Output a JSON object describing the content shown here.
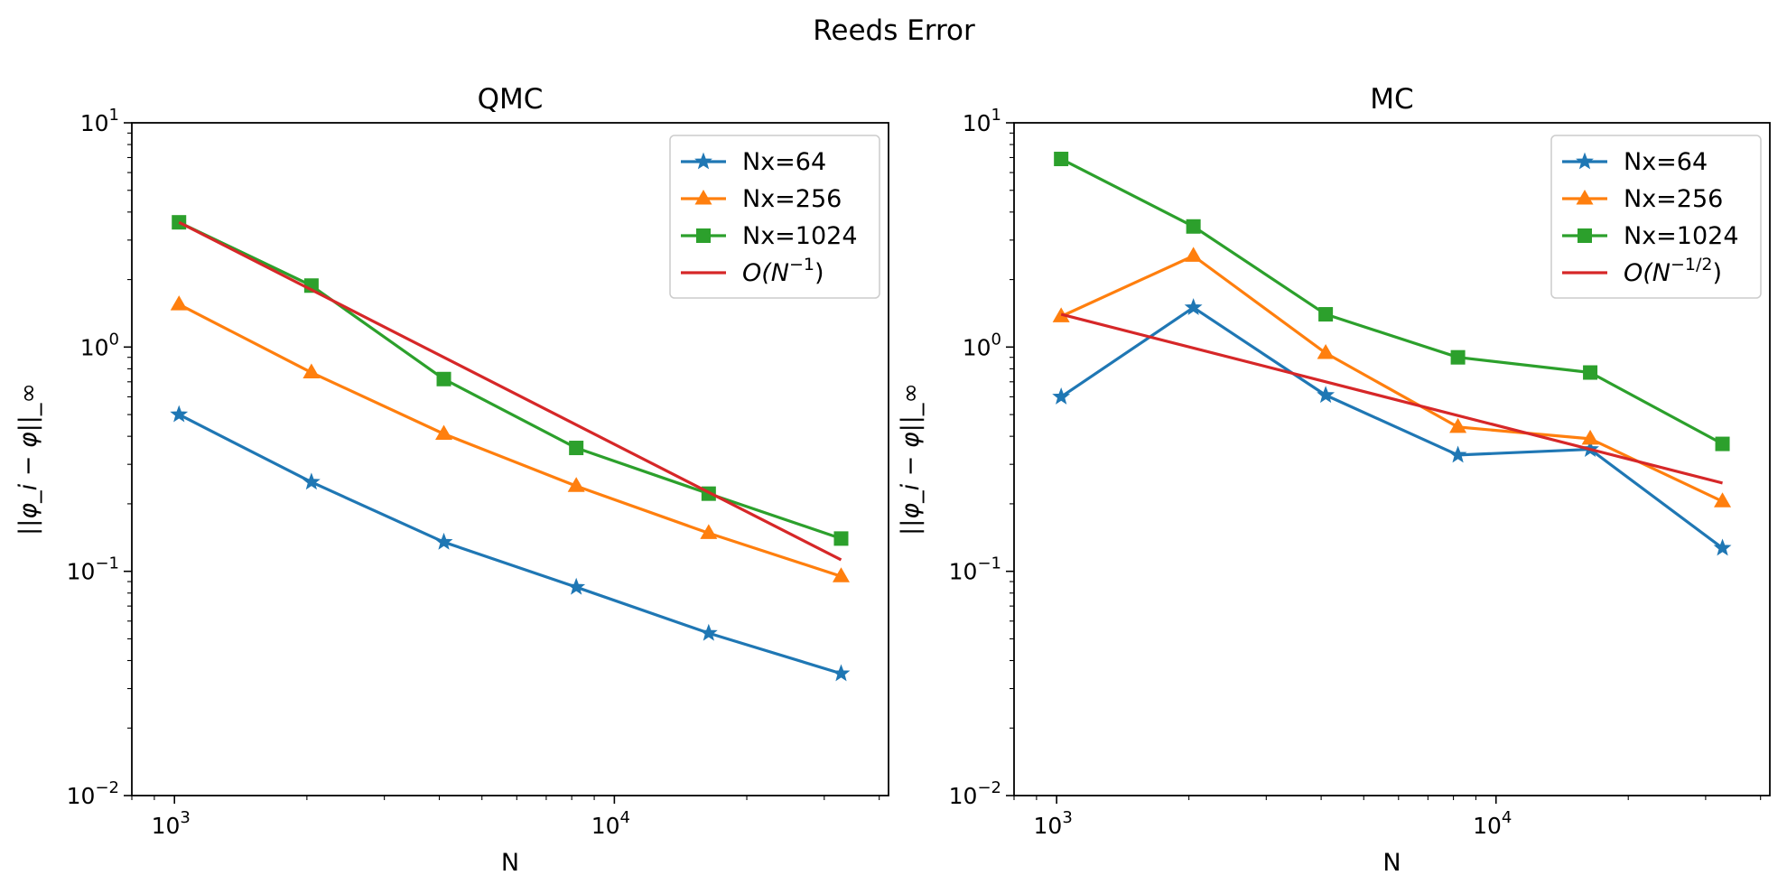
{
  "figure_title": "Reeds Error",
  "colors": {
    "Nx=64": "#1f77b4",
    "Nx=256": "#ff7f0e",
    "Nx=1024": "#2ca02c",
    "reference": "#d62728"
  },
  "chart_data": [
    {
      "type": "line",
      "title": "QMC",
      "xlabel": "N",
      "ylabel": "||φ_i − φ||_∞",
      "xscale": "log",
      "yscale": "log",
      "xlim": [
        800,
        42000
      ],
      "ylim": [
        0.01,
        10
      ],
      "x_ticks": [
        {
          "base": "10",
          "exp": "3"
        },
        {
          "base": "10",
          "exp": "4"
        }
      ],
      "y_ticks": [
        {
          "base": "10",
          "exp": "1"
        },
        {
          "base": "10",
          "exp": "0"
        },
        {
          "base": "10",
          "exp": "−1"
        },
        {
          "base": "10",
          "exp": "−2"
        }
      ],
      "legend_position": "upper right",
      "grid": false,
      "x": [
        1024,
        2048,
        4096,
        8192,
        16384,
        32768
      ],
      "series": [
        {
          "name": "Nx=64",
          "marker": "star",
          "values": [
            0.5,
            0.25,
            0.135,
            0.085,
            0.053,
            0.035
          ]
        },
        {
          "name": "Nx=256",
          "marker": "triangle",
          "values": [
            1.55,
            0.77,
            0.41,
            0.24,
            0.148,
            0.095
          ]
        },
        {
          "name": "Nx=1024",
          "marker": "square",
          "values": [
            3.6,
            1.88,
            0.72,
            0.355,
            0.222,
            0.14
          ]
        },
        {
          "name": "O(N^{-1})",
          "legend_main": "O(N",
          "legend_sup": "−1",
          "legend_tail": ")",
          "marker": "none",
          "x": [
            1024,
            32768
          ],
          "values": [
            3.6,
            0.1125
          ]
        }
      ]
    },
    {
      "type": "line",
      "title": "MC",
      "xlabel": "N",
      "ylabel": "||φ_i − φ||_∞",
      "xscale": "log",
      "yscale": "log",
      "xlim": [
        800,
        42000
      ],
      "ylim": [
        0.01,
        10
      ],
      "x_ticks": [
        {
          "base": "10",
          "exp": "3"
        },
        {
          "base": "10",
          "exp": "4"
        }
      ],
      "y_ticks": [
        {
          "base": "10",
          "exp": "1"
        },
        {
          "base": "10",
          "exp": "0"
        },
        {
          "base": "10",
          "exp": "−1"
        },
        {
          "base": "10",
          "exp": "−2"
        }
      ],
      "legend_position": "upper right",
      "grid": false,
      "x": [
        1024,
        2048,
        4096,
        8192,
        16384,
        32768
      ],
      "series": [
        {
          "name": "Nx=64",
          "marker": "star",
          "values": [
            0.6,
            1.5,
            0.61,
            0.33,
            0.35,
            0.127
          ]
        },
        {
          "name": "Nx=256",
          "marker": "triangle",
          "values": [
            1.37,
            2.55,
            0.94,
            0.44,
            0.39,
            0.205
          ]
        },
        {
          "name": "Nx=1024",
          "marker": "square",
          "values": [
            6.9,
            3.45,
            1.4,
            0.9,
            0.77,
            0.37
          ]
        },
        {
          "name": "O(N^{-1/2})",
          "legend_main": "O(N",
          "legend_sup": "−1/2",
          "legend_tail": ")",
          "marker": "none",
          "x": [
            1024,
            32768
          ],
          "values": [
            1.4,
            0.2475
          ]
        }
      ]
    }
  ]
}
